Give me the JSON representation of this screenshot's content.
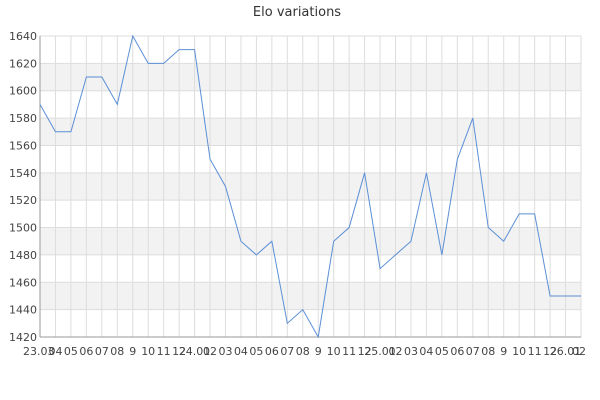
{
  "chart_data": {
    "type": "line",
    "title": "Elo variations",
    "xlabel": "",
    "ylabel": "",
    "ylim": [
      1420,
      1640
    ],
    "y_ticks": [
      1420,
      1440,
      1460,
      1480,
      1500,
      1520,
      1540,
      1560,
      1580,
      1600,
      1620,
      1640
    ],
    "x_tick_labels": [
      "23.03",
      "04",
      "05",
      "06",
      "07",
      "08",
      "9",
      "10",
      "11",
      "12",
      "24.01",
      "02",
      "03",
      "04",
      "05",
      "06",
      "07",
      "08",
      "9",
      "10",
      "11",
      "12",
      "25.01",
      "02",
      "03",
      "04",
      "05",
      "06",
      "07",
      "08",
      "9",
      "10",
      "11",
      "12",
      "26.01",
      "02"
    ],
    "series": [
      {
        "values": [
          1590,
          1570,
          1570,
          1610,
          1610,
          1590,
          1640,
          1620,
          1620,
          1630,
          1630,
          1550,
          1530,
          1490,
          1480,
          1490,
          1430,
          1440,
          1420,
          1490,
          1500,
          1540,
          1470,
          1480,
          1490,
          1540,
          1480,
          1550,
          1580,
          1500,
          1490,
          1510,
          1510,
          1450,
          1450,
          1450
        ]
      }
    ],
    "grid": true,
    "line_color": "#5b8fd6",
    "band_color": "#f2f2f2",
    "grid_color": "#dddddd"
  }
}
